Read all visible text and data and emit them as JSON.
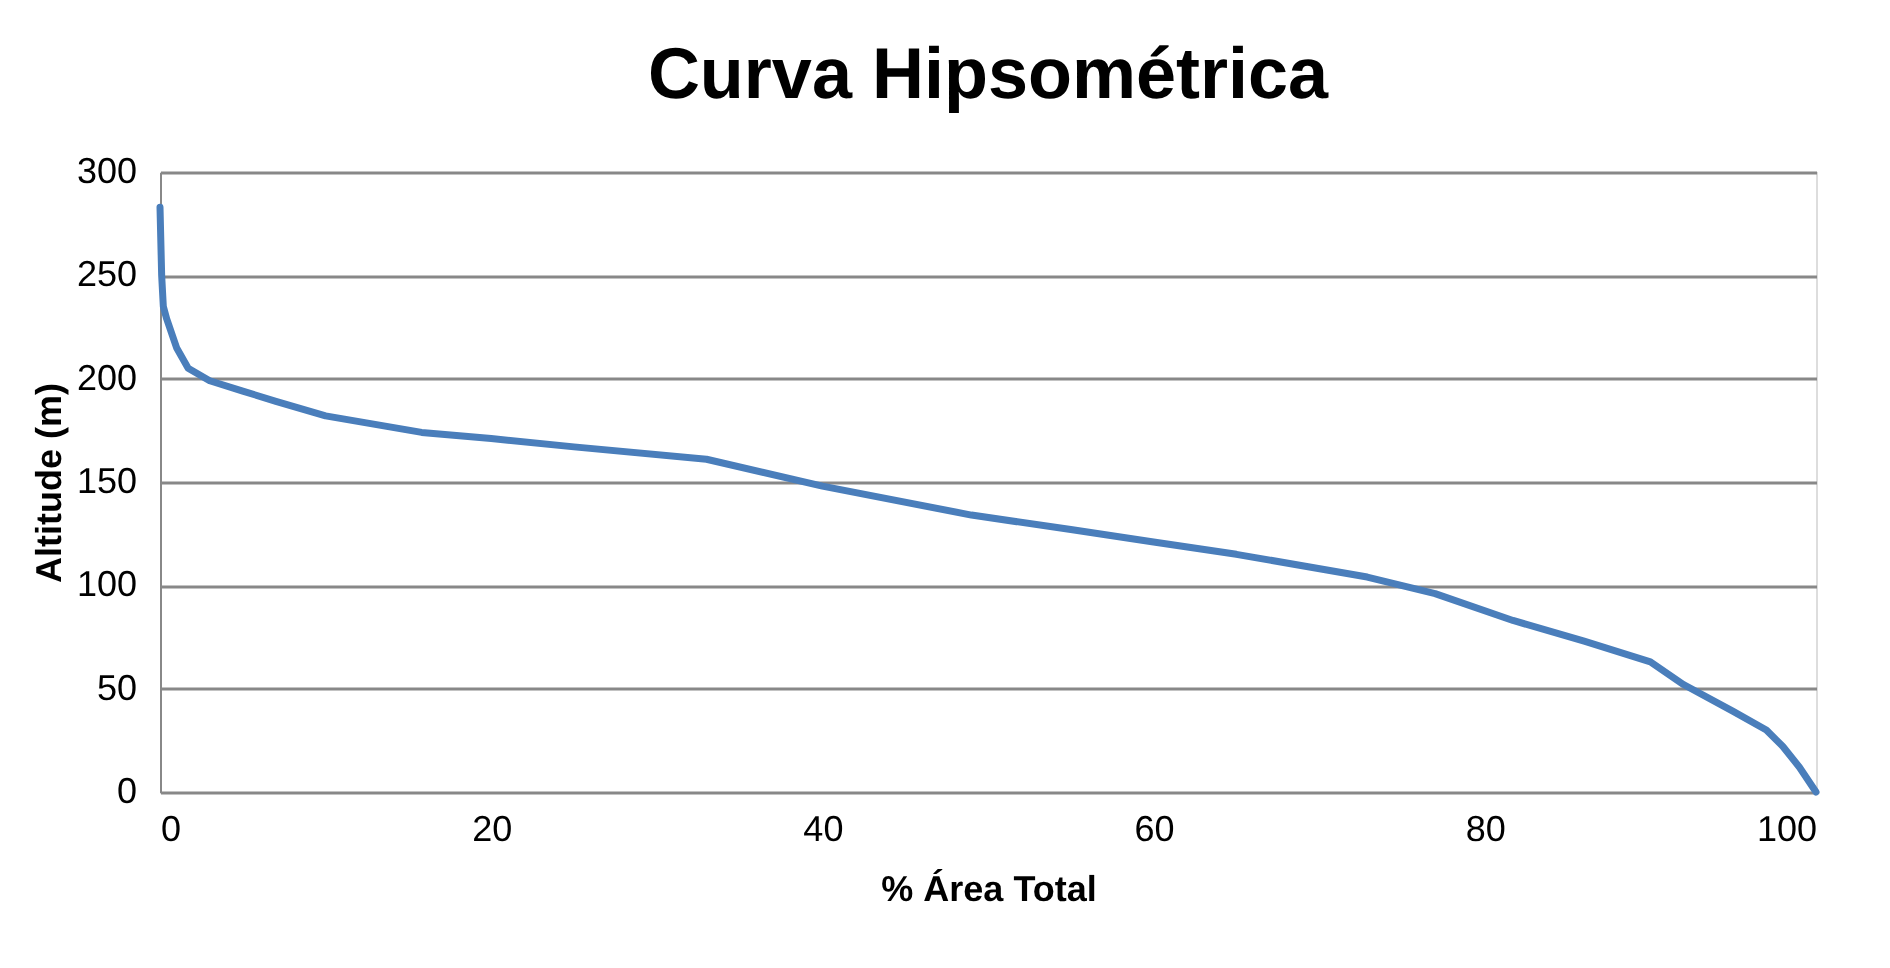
{
  "chart_data": {
    "type": "line",
    "title": "Curva Hipsométrica",
    "xlabel": "% Área Total",
    "ylabel": "Altitude (m)",
    "series": [
      {
        "color": "#4a7ebb",
        "x": [
          0,
          0.1,
          0.2,
          0.4,
          1,
          1.7,
          3,
          5,
          7,
          10,
          15.8,
          20,
          25,
          33,
          40,
          49,
          55,
          60,
          65,
          72.9,
          77,
          81.7,
          86,
          90,
          92,
          95,
          97,
          98,
          99,
          100
        ],
        "values": [
          283,
          250,
          235,
          229,
          215,
          205,
          199,
          194,
          189,
          182,
          174,
          171,
          167,
          161,
          148,
          134,
          127,
          121,
          115,
          104,
          96,
          83,
          73,
          63,
          52,
          39,
          30,
          22,
          12,
          0
        ]
      }
    ],
    "xlim": [
      0,
      100
    ],
    "xticks": [
      0,
      20,
      40,
      60,
      80,
      100
    ],
    "ylim": [
      0,
      300
    ],
    "yticks": [
      0,
      50,
      100,
      150,
      200,
      250,
      300
    ],
    "grid": "y",
    "marker": "none",
    "line_style": "solid",
    "legend": false
  }
}
